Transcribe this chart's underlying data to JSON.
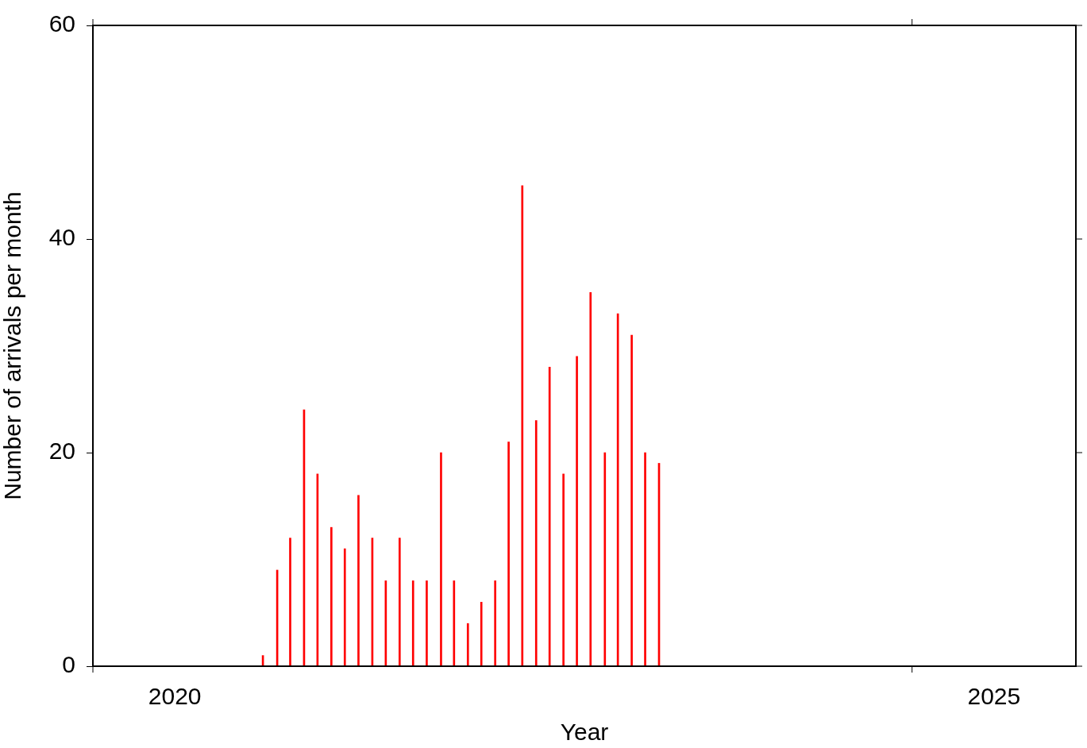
{
  "chart_data": {
    "type": "bar",
    "xlabel": "Year",
    "ylabel": "Number of arrivals per month",
    "x": [
      "2021-01-15",
      "2021-02-15",
      "2021-03-15",
      "2021-04-15",
      "2021-05-15",
      "2021-06-15",
      "2021-07-15",
      "2021-08-15",
      "2021-09-15",
      "2021-10-15",
      "2021-11-15",
      "2021-12-15",
      "2022-01-15",
      "2022-02-15",
      "2022-03-15",
      "2022-04-15",
      "2022-05-15",
      "2022-06-15",
      "2022-07-15",
      "2022-08-15",
      "2022-09-15",
      "2022-10-15",
      "2022-11-15",
      "2022-12-15",
      "2023-01-15",
      "2023-02-15",
      "2023-03-15",
      "2023-04-15",
      "2023-05-15",
      "2023-06-15"
    ],
    "values": [
      1,
      9,
      12,
      24,
      18,
      13,
      11,
      16,
      12,
      8,
      12,
      8,
      8,
      20,
      8,
      4,
      6,
      8,
      21,
      45,
      23,
      28,
      18,
      29,
      35,
      20,
      33,
      31,
      20,
      19
    ],
    "color": "#ff0000",
    "xlim": [
      "2020",
      "2026"
    ],
    "xticks": [
      {
        "value": "2020",
        "label": null
      },
      {
        "value": "2020-07",
        "label": "2020"
      },
      {
        "value": "2025",
        "label": null
      },
      {
        "value": "2025-07",
        "label": "2025"
      }
    ],
    "ylim": [
      0,
      60
    ],
    "yticks": [
      0,
      20,
      40,
      60
    ],
    "grid": false,
    "legend": false
  }
}
